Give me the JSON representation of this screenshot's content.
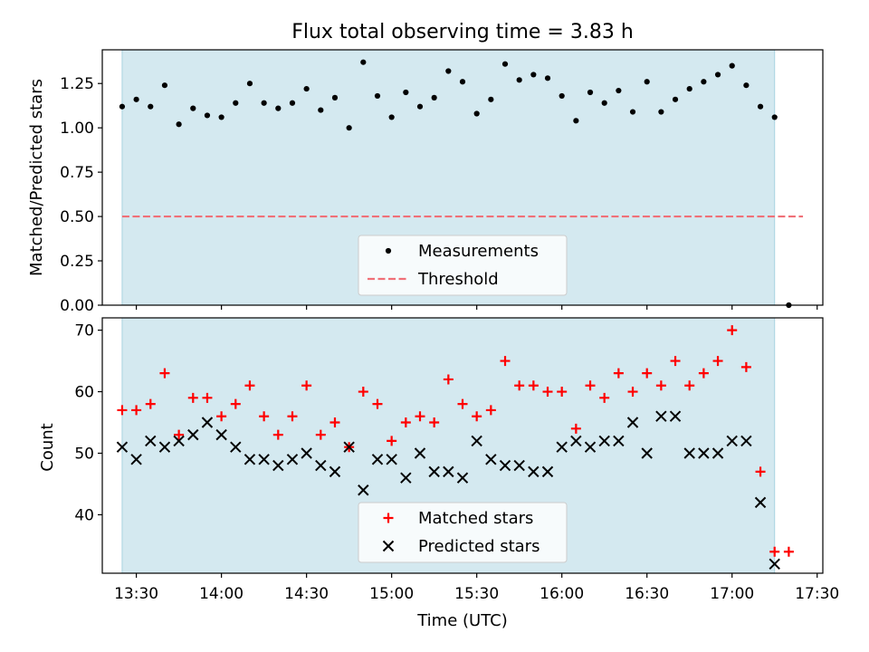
{
  "chart_data": [
    {
      "type": "scatter",
      "title": "Flux total observing time = 3.83 h",
      "xlabel": "",
      "ylabel": "Matched/Predicted stars",
      "xlim": [
        "13:18",
        "17:32"
      ],
      "ylim": [
        0,
        1.44
      ],
      "yticks": [
        0,
        0.25,
        0.5,
        0.75,
        1.0,
        1.25
      ],
      "ytick_labels": [
        "0.00",
        "0.25",
        "0.50",
        "0.75",
        "1.00",
        "1.25"
      ],
      "shaded_interval": [
        "13:25",
        "17:15"
      ],
      "shade_color": "#d4e9f0",
      "series": [
        {
          "name": "Measurements",
          "marker": "dot",
          "color": "#000000",
          "x": [
            "13:25",
            "13:30",
            "13:35",
            "13:40",
            "13:45",
            "13:50",
            "13:55",
            "14:00",
            "14:05",
            "14:10",
            "14:15",
            "14:20",
            "14:25",
            "14:30",
            "14:35",
            "14:40",
            "14:45",
            "14:50",
            "14:55",
            "15:00",
            "15:05",
            "15:10",
            "15:15",
            "15:20",
            "15:25",
            "15:30",
            "15:35",
            "15:40",
            "15:45",
            "15:50",
            "15:55",
            "16:00",
            "16:05",
            "16:10",
            "16:15",
            "16:20",
            "16:25",
            "16:30",
            "16:35",
            "16:40",
            "16:45",
            "16:50",
            "16:55",
            "17:00",
            "17:05",
            "17:10",
            "17:15",
            "17:20"
          ],
          "y": [
            1.12,
            1.16,
            1.12,
            1.24,
            1.02,
            1.11,
            1.07,
            1.06,
            1.14,
            1.25,
            1.14,
            1.11,
            1.14,
            1.22,
            1.1,
            1.17,
            1.0,
            1.37,
            1.18,
            1.06,
            1.2,
            1.12,
            1.17,
            1.32,
            1.26,
            1.08,
            1.16,
            1.36,
            1.27,
            1.3,
            1.28,
            1.18,
            1.04,
            1.2,
            1.14,
            1.21,
            1.09,
            1.26,
            1.09,
            1.16,
            1.22,
            1.26,
            1.3,
            1.35,
            1.24,
            1.12,
            1.06,
            0.0
          ]
        },
        {
          "name": "Threshold",
          "style": "dashed",
          "color": "#f07078",
          "x": [
            "13:25",
            "17:25"
          ],
          "y": [
            0.5,
            0.5
          ]
        }
      ],
      "legend": "lower-center"
    },
    {
      "type": "scatter",
      "title": "",
      "xlabel": "Time (UTC)",
      "ylabel": "Count",
      "xlim": [
        "13:18",
        "17:32"
      ],
      "ylim": [
        30.5,
        72
      ],
      "xticks": [
        "13:30",
        "14:00",
        "14:30",
        "15:00",
        "15:30",
        "16:00",
        "16:30",
        "17:00",
        "17:30"
      ],
      "yticks": [
        40,
        50,
        60,
        70
      ],
      "ytick_labels": [
        "40",
        "50",
        "60",
        "70"
      ],
      "shaded_interval": [
        "13:25",
        "17:15"
      ],
      "shade_color": "#d4e9f0",
      "series": [
        {
          "name": "Matched stars",
          "marker": "plus",
          "color": "#ff0000",
          "x": [
            "13:25",
            "13:30",
            "13:35",
            "13:40",
            "13:45",
            "13:50",
            "13:55",
            "14:00",
            "14:05",
            "14:10",
            "14:15",
            "14:20",
            "14:25",
            "14:30",
            "14:35",
            "14:40",
            "14:45",
            "14:50",
            "14:55",
            "15:00",
            "15:05",
            "15:10",
            "15:15",
            "15:20",
            "15:25",
            "15:30",
            "15:35",
            "15:40",
            "15:45",
            "15:50",
            "15:55",
            "16:00",
            "16:05",
            "16:10",
            "16:15",
            "16:20",
            "16:25",
            "16:30",
            "16:35",
            "16:40",
            "16:45",
            "16:50",
            "16:55",
            "17:00",
            "17:05",
            "17:10",
            "17:15",
            "17:20"
          ],
          "y": [
            57,
            57,
            58,
            63,
            53,
            59,
            59,
            56,
            58,
            61,
            56,
            53,
            56,
            61,
            53,
            55,
            51,
            60,
            58,
            52,
            55,
            56,
            55,
            62,
            58,
            56,
            57,
            65,
            61,
            61,
            60,
            60,
            54,
            61,
            59,
            63,
            60,
            63,
            61,
            65,
            61,
            63,
            65,
            70,
            64,
            47,
            34,
            34
          ]
        },
        {
          "name": "Predicted stars",
          "marker": "x",
          "color": "#000000",
          "x": [
            "13:25",
            "13:30",
            "13:35",
            "13:40",
            "13:45",
            "13:50",
            "13:55",
            "14:00",
            "14:05",
            "14:10",
            "14:15",
            "14:20",
            "14:25",
            "14:30",
            "14:35",
            "14:40",
            "14:45",
            "14:50",
            "14:55",
            "15:00",
            "15:05",
            "15:10",
            "15:15",
            "15:20",
            "15:25",
            "15:30",
            "15:35",
            "15:40",
            "15:45",
            "15:50",
            "15:55",
            "16:00",
            "16:05",
            "16:10",
            "16:15",
            "16:20",
            "16:25",
            "16:30",
            "16:35",
            "16:40",
            "16:45",
            "16:50",
            "16:55",
            "17:00",
            "17:05",
            "17:10",
            "17:15"
          ],
          "y": [
            51,
            49,
            52,
            51,
            52,
            53,
            55,
            53,
            51,
            49,
            49,
            48,
            49,
            50,
            48,
            47,
            51,
            44,
            49,
            49,
            46,
            50,
            47,
            47,
            46,
            52,
            49,
            48,
            48,
            47,
            47,
            51,
            52,
            51,
            52,
            52,
            55,
            50,
            56,
            56,
            50,
            50,
            50,
            52,
            52,
            42,
            32
          ]
        }
      ],
      "legend": "lower-center"
    }
  ]
}
